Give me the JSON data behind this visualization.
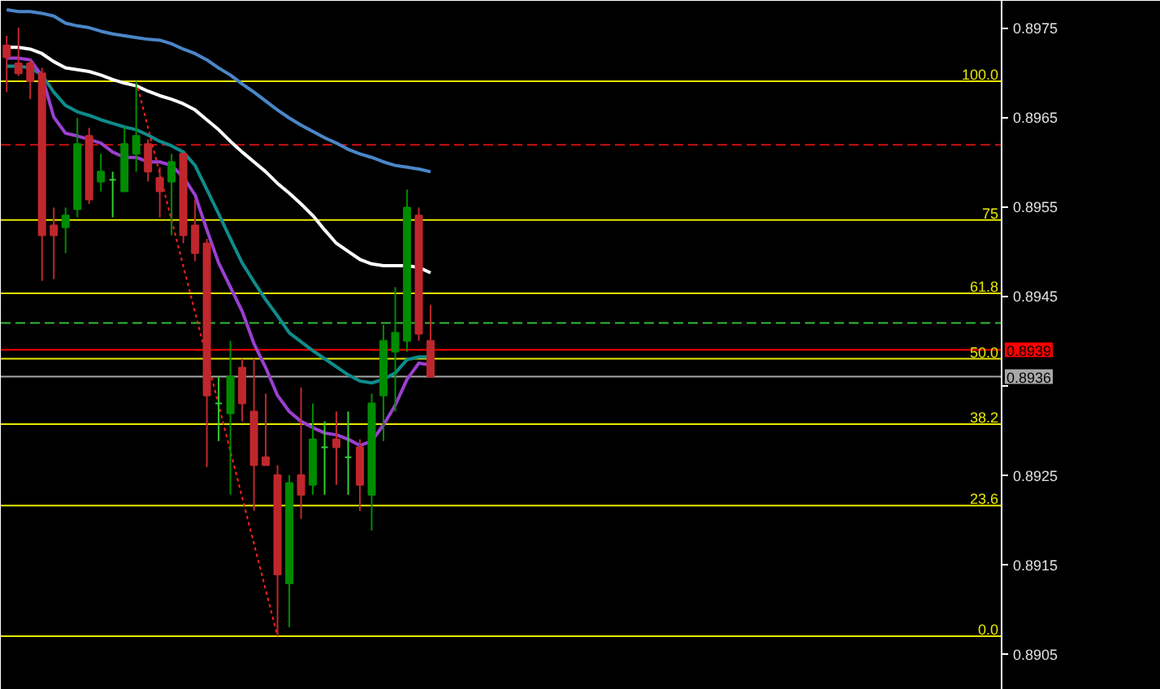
{
  "chart_data": {
    "type": "candlestick",
    "categories": [
      null,
      null,
      null,
      null,
      null,
      null,
      null,
      null,
      null,
      null,
      null,
      null,
      null,
      null,
      null,
      null,
      null,
      null,
      null,
      null,
      null,
      null,
      null,
      null,
      null,
      null,
      null,
      null,
      null,
      null,
      null,
      null,
      null,
      null,
      null,
      null,
      null,
      null,
      null,
      null,
      null,
      null,
      null,
      null,
      null,
      null,
      null,
      null,
      null,
      null,
      null,
      null,
      null,
      null,
      null,
      null,
      null,
      null,
      null,
      null,
      null,
      null,
      null,
      null,
      null,
      null,
      null,
      null,
      null,
      null,
      null,
      null,
      null,
      null,
      null,
      null,
      null,
      null,
      null,
      null,
      null,
      null,
      null,
      null,
      null
    ],
    "ohlc": [
      [
        0.8973,
        0.89741,
        0.89678,
        0.89717
      ],
      [
        0.8971,
        0.8975,
        0.89696,
        0.89699
      ],
      [
        0.8971,
        0.89714,
        0.8967,
        0.8969
      ],
      [
        0.89699,
        0.89705,
        0.89467,
        0.89518
      ],
      [
        0.89529,
        0.89549,
        0.89469,
        0.89518
      ],
      [
        0.89527,
        0.89549,
        0.89498,
        0.8954
      ],
      [
        0.89547,
        0.89649,
        0.89538,
        0.8962
      ],
      [
        0.89629,
        0.89638,
        0.89553,
        0.89558
      ],
      [
        0.89578,
        0.89609,
        0.89567,
        0.89589
      ],
      [
        0.8958,
        0.89589,
        0.89538,
        0.8958
      ],
      [
        0.89567,
        0.89639,
        0.89567,
        0.8962
      ],
      [
        0.89609,
        0.8969,
        0.89589,
        0.89629
      ],
      [
        0.8962,
        0.89625,
        0.89578,
        0.89589
      ],
      [
        0.89582,
        0.89594,
        0.89538,
        0.89567
      ],
      [
        0.89578,
        0.89609,
        0.89518,
        0.896
      ],
      [
        0.89609,
        0.89609,
        0.89509,
        0.89518
      ],
      [
        0.89529,
        0.89558,
        0.89489,
        0.89498
      ],
      [
        0.89509,
        0.89514,
        0.89259,
        0.89339
      ],
      [
        0.8933,
        0.8936,
        0.89288,
        0.8933
      ],
      [
        0.89319,
        0.894,
        0.89228,
        0.8936
      ],
      [
        0.8937,
        0.8938,
        0.8931,
        0.8933
      ],
      [
        0.89321,
        0.8938,
        0.8921,
        0.89261
      ],
      [
        0.8927,
        0.89341,
        0.89261,
        0.89261
      ],
      [
        0.8925,
        0.89261,
        0.8907,
        0.89139
      ],
      [
        0.89129,
        0.8925,
        0.8908,
        0.89241
      ],
      [
        0.8925,
        0.89348,
        0.89201,
        0.89228
      ],
      [
        0.89239,
        0.8933,
        0.89228,
        0.8929
      ],
      [
        0.89281,
        0.8931,
        0.89228,
        0.89281
      ],
      [
        0.8929,
        0.89321,
        0.89239,
        0.89281
      ],
      [
        0.8927,
        0.89321,
        0.89228,
        0.8927
      ],
      [
        0.89281,
        0.8929,
        0.8921,
        0.89239
      ],
      [
        0.89228,
        0.89341,
        0.89188,
        0.8933
      ],
      [
        0.89339,
        0.89418,
        0.89288,
        0.894
      ],
      [
        0.89388,
        0.8946,
        0.89321,
        0.89409
      ],
      [
        0.894,
        0.89569,
        0.89388,
        0.89549
      ],
      [
        0.8954,
        0.89549,
        0.894,
        0.89408
      ],
      [
        0.894,
        0.8944,
        0.89359,
        0.8936
      ],
      null,
      null,
      null,
      null,
      null,
      null,
      null,
      null,
      null,
      null,
      null,
      null,
      null,
      null,
      null,
      null,
      null,
      null,
      null,
      null,
      null,
      null,
      null,
      null,
      null,
      null,
      null,
      null,
      null,
      null,
      null,
      null,
      null,
      null,
      null,
      null,
      null,
      null,
      null,
      null,
      null,
      null,
      null,
      null,
      null,
      null,
      null,
      null
    ],
    "colors": [
      "#c0272d",
      "#c0272d",
      "#c0272d",
      "#c0272d",
      "#c0272d",
      "#008c00",
      "#008c00",
      "#c0272d",
      "#008c00",
      "#32cd32",
      "#008c00",
      "#008c00",
      "#c0272d",
      "#c0272d",
      "#008c00",
      "#c0272d",
      "#c0272d",
      "#c0272d",
      "#32cd32",
      "#008c00",
      "#c0272d",
      "#c0272d",
      "#c0272d",
      "#c0272d",
      "#008c00",
      "#c0272d",
      "#008c00",
      "#32cd32",
      "#c0272d",
      "#32cd32",
      "#c0272d",
      "#008c00",
      "#008c00",
      "#008c00",
      "#008c00",
      "#c0272d",
      "#c0272d",
      null,
      null,
      null,
      null,
      null,
      null,
      null,
      null,
      null,
      null,
      null,
      null,
      null,
      null,
      null,
      null,
      null,
      null,
      null,
      null,
      null,
      null,
      null,
      null,
      null,
      null,
      null,
      null,
      null,
      null,
      null,
      null,
      null,
      null,
      null,
      null,
      null,
      null,
      null,
      null,
      null,
      null,
      null,
      null,
      null,
      null,
      null,
      null
    ],
    "series": [
      {
        "type": "line",
        "color": "#4a86c8",
        "values": [
          0.8977,
          0.89768,
          0.89768,
          0.89766,
          0.89763,
          0.89755,
          0.89752,
          0.8975,
          0.89746,
          0.89743,
          0.89741,
          0.89739,
          0.89737,
          0.89736,
          0.89732,
          0.89726,
          0.89721,
          0.89714,
          0.89705,
          0.89697,
          0.89687,
          0.89678,
          0.89668,
          0.89658,
          0.89649,
          0.89641,
          0.89634,
          0.89627,
          0.89621,
          0.89614,
          0.89609,
          0.89605,
          0.896,
          0.89596,
          0.89594,
          0.89592,
          0.89589,
          null,
          null,
          null,
          null,
          null,
          null,
          null,
          null,
          null,
          null,
          null,
          null,
          null,
          null,
          null,
          null,
          null,
          null,
          null,
          null,
          null,
          null,
          null,
          null,
          null,
          null,
          null,
          null,
          null,
          null,
          null,
          null,
          null,
          null,
          null,
          null,
          null,
          null,
          null,
          null,
          null,
          null,
          null,
          null,
          null,
          null,
          null,
          null
        ]
      },
      {
        "type": "line",
        "color": "#ffffff",
        "values": [
          0.89728,
          0.89728,
          0.89726,
          0.89721,
          0.89712,
          0.89705,
          0.89703,
          0.89701,
          0.89697,
          0.89692,
          0.89688,
          0.89685,
          0.89679,
          0.89674,
          0.8967,
          0.89665,
          0.89658,
          0.89647,
          0.89636,
          0.89623,
          0.89611,
          0.896,
          0.89589,
          0.89576,
          0.89565,
          0.89553,
          0.8954,
          0.89524,
          0.89509,
          0.895,
          0.89491,
          0.89486,
          0.89484,
          0.89484,
          0.89484,
          0.89482,
          0.89476,
          null,
          null,
          null,
          null,
          null,
          null,
          null,
          null,
          null,
          null,
          null,
          null,
          null,
          null,
          null,
          null,
          null,
          null,
          null,
          null,
          null,
          null,
          null,
          null,
          null,
          null,
          null,
          null,
          null,
          null,
          null,
          null,
          null,
          null,
          null,
          null,
          null,
          null,
          null,
          null,
          null,
          null,
          null,
          null,
          null,
          null,
          null,
          null
        ]
      },
      {
        "type": "line",
        "color": "#0e8c8c",
        "values": [
          0.89707,
          0.89707,
          0.89705,
          0.89697,
          0.89678,
          0.89663,
          0.89656,
          0.89652,
          0.89647,
          0.89643,
          0.89639,
          0.89636,
          0.8963,
          0.89623,
          0.89618,
          0.89611,
          0.89596,
          0.89569,
          0.89542,
          0.89514,
          0.89487,
          0.89466,
          0.89446,
          0.89428,
          0.89409,
          0.89399,
          0.89389,
          0.8938,
          0.89371,
          0.89362,
          0.89355,
          0.89353,
          0.89357,
          0.89364,
          0.89379,
          0.89382,
          0.89382,
          null,
          null,
          null,
          null,
          null,
          null,
          null,
          null,
          null,
          null,
          null,
          null,
          null,
          null,
          null,
          null,
          null,
          null,
          null,
          null,
          null,
          null,
          null,
          null,
          null,
          null,
          null,
          null,
          null,
          null,
          null,
          null,
          null,
          null,
          null,
          null,
          null,
          null,
          null,
          null,
          null,
          null,
          null,
          null,
          null,
          null,
          null,
          null
        ]
      },
      {
        "type": "line",
        "color": "#9b3fd0",
        "values": [
          0.89716,
          0.89716,
          0.89714,
          0.89696,
          0.8965,
          0.89632,
          0.89629,
          0.89625,
          0.89621,
          0.89611,
          0.89605,
          0.89605,
          0.896,
          0.896,
          0.89596,
          0.89583,
          0.89563,
          0.89524,
          0.89487,
          0.8946,
          0.89433,
          0.89397,
          0.8937,
          0.89339,
          0.89321,
          0.8931,
          0.89303,
          0.89297,
          0.89295,
          0.8929,
          0.89283,
          0.89288,
          0.89306,
          0.89328,
          0.89357,
          0.89375,
          0.89373,
          null,
          null,
          null,
          null,
          null,
          null,
          null,
          null,
          null,
          null,
          null,
          null,
          null,
          null,
          null,
          null,
          null,
          null,
          null,
          null,
          null,
          null,
          null,
          null,
          null,
          null,
          null,
          null,
          null,
          null,
          null,
          null,
          null,
          null,
          null,
          null,
          null,
          null,
          null,
          null,
          null,
          null,
          null,
          null,
          null,
          null,
          null,
          null
        ]
      },
      {
        "type": "line",
        "color": "#ff2020",
        "line_style": "dotted",
        "values": [
          null,
          null,
          null,
          null,
          null,
          null,
          null,
          null,
          null,
          null,
          null,
          0.8969,
          null,
          null,
          null,
          null,
          null,
          null,
          null,
          null,
          null,
          null,
          null,
          0.8907,
          null,
          null,
          null,
          null,
          null,
          null,
          null,
          null,
          null,
          null,
          null,
          null,
          null,
          null,
          null,
          null,
          null,
          null,
          null,
          null,
          null,
          null,
          null,
          null,
          null,
          null,
          null,
          null,
          null,
          null,
          null,
          null,
          null,
          null,
          null,
          null,
          null,
          null,
          null,
          null,
          null,
          null,
          null,
          null,
          null,
          null,
          null,
          null,
          null,
          null,
          null,
          null,
          null,
          null,
          null,
          null,
          null,
          null,
          null,
          null,
          null
        ]
      }
    ],
    "ylim": [
      0.8901,
      0.8978
    ],
    "yticks": [
      0.8905,
      0.8915,
      0.8925,
      {
        "value": 0.8935,
        "label": null
      },
      0.8945,
      0.8955,
      0.8965,
      0.8975
    ],
    "tick_labels": "y",
    "ref_lines": [
      {
        "axis": "y",
        "value": 0.8969,
        "color": "#e8e800"
      },
      {
        "axis": "y",
        "value": 0.89535,
        "color": "#e8e800"
      },
      {
        "axis": "y",
        "value": 0.89453,
        "color": "#e8e800"
      },
      {
        "axis": "y",
        "value": 0.8938,
        "color": "#e8e800"
      },
      {
        "axis": "y",
        "value": 0.89307,
        "color": "#e8e800"
      },
      {
        "axis": "y",
        "value": 0.89216,
        "color": "#e8e800"
      },
      {
        "axis": "y",
        "value": 0.8907,
        "color": "#e8e800"
      },
      {
        "axis": "y",
        "value": 0.89619,
        "color": "#cc1111",
        "line_style": "dashed"
      },
      {
        "axis": "y",
        "value": 0.8942,
        "color": "#33bb33",
        "line_style": "dashed"
      },
      {
        "axis": "y",
        "value": 0.8939,
        "label": "0.8939",
        "color": "#ff0000"
      },
      {
        "axis": "y",
        "value": 0.8936,
        "label": "0.8936",
        "color": "#a8a8a8"
      }
    ],
    "annotations": [
      {
        "text": "100.0",
        "y": 0.8969
      },
      {
        "text": "75",
        "y": 0.89535
      },
      {
        "text": "61.8",
        "y": 0.89453
      },
      {
        "text": "50.0",
        "y": 0.8938
      },
      {
        "text": "38.2",
        "y": 0.89307
      },
      {
        "text": "23.6",
        "y": 0.89216
      },
      {
        "text": "0.0",
        "y": 0.8907
      }
    ]
  }
}
